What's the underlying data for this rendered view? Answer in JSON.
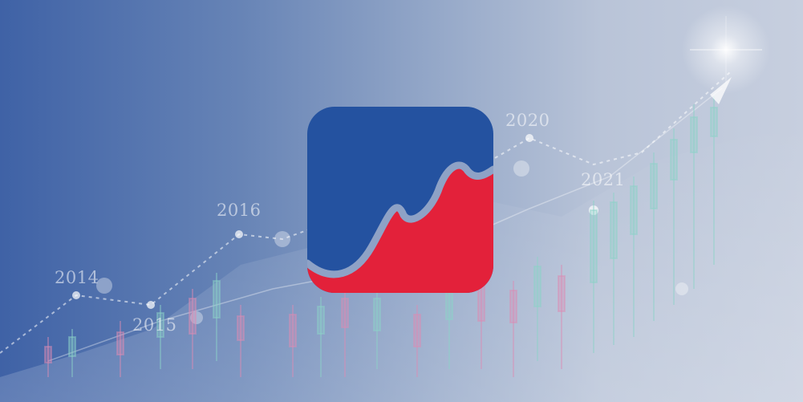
{
  "background": {
    "year_labels": [
      "2014",
      "2015",
      "2016",
      "2020",
      "2021"
    ]
  },
  "logo": {
    "icon": "trend-chart-logo-icon",
    "colors": {
      "top": "#2452a0",
      "bottom": "#e3213a",
      "line": "#8ea2c6"
    }
  }
}
